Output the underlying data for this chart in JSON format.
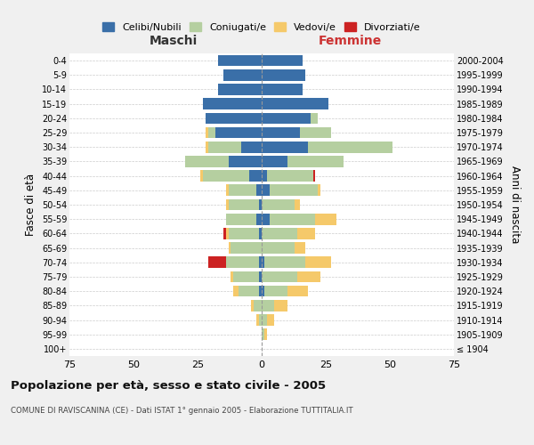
{
  "age_groups": [
    "100+",
    "95-99",
    "90-94",
    "85-89",
    "80-84",
    "75-79",
    "70-74",
    "65-69",
    "60-64",
    "55-59",
    "50-54",
    "45-49",
    "40-44",
    "35-39",
    "30-34",
    "25-29",
    "20-24",
    "15-19",
    "10-14",
    "5-9",
    "0-4"
  ],
  "birth_years": [
    "≤ 1904",
    "1905-1909",
    "1910-1914",
    "1915-1919",
    "1920-1924",
    "1925-1929",
    "1930-1934",
    "1935-1939",
    "1940-1944",
    "1945-1949",
    "1950-1954",
    "1955-1959",
    "1960-1964",
    "1965-1969",
    "1970-1974",
    "1975-1979",
    "1980-1984",
    "1985-1989",
    "1990-1994",
    "1995-1999",
    "2000-2004"
  ],
  "male": {
    "celibi": [
      0,
      0,
      0,
      0,
      1,
      1,
      1,
      0,
      1,
      2,
      1,
      2,
      5,
      13,
      8,
      18,
      22,
      23,
      17,
      15,
      17
    ],
    "coniugati": [
      0,
      0,
      1,
      3,
      8,
      10,
      13,
      12,
      12,
      12,
      12,
      11,
      18,
      17,
      13,
      3,
      0,
      0,
      0,
      0,
      0
    ],
    "vedovi": [
      0,
      0,
      1,
      1,
      2,
      1,
      0,
      1,
      1,
      0,
      1,
      1,
      1,
      0,
      1,
      1,
      0,
      0,
      0,
      0,
      0
    ],
    "divorziati": [
      0,
      0,
      0,
      0,
      0,
      0,
      7,
      0,
      1,
      0,
      0,
      0,
      0,
      0,
      0,
      0,
      0,
      0,
      0,
      0,
      0
    ]
  },
  "female": {
    "nubili": [
      0,
      0,
      0,
      0,
      1,
      0,
      1,
      0,
      0,
      3,
      0,
      3,
      2,
      10,
      18,
      15,
      19,
      26,
      16,
      17,
      16
    ],
    "coniugate": [
      0,
      1,
      2,
      5,
      9,
      14,
      16,
      13,
      14,
      18,
      13,
      19,
      18,
      22,
      33,
      12,
      3,
      0,
      0,
      0,
      0
    ],
    "vedove": [
      0,
      1,
      3,
      5,
      8,
      9,
      10,
      4,
      7,
      8,
      2,
      1,
      0,
      0,
      0,
      0,
      0,
      0,
      0,
      0,
      0
    ],
    "divorziate": [
      0,
      0,
      0,
      0,
      0,
      0,
      0,
      0,
      0,
      0,
      0,
      0,
      1,
      0,
      0,
      0,
      0,
      0,
      0,
      0,
      0
    ]
  },
  "colors": {
    "celibi": "#3a6fa8",
    "coniugati": "#b5cfa0",
    "vedovi": "#f5c96a",
    "divorziati": "#cc2222"
  },
  "title": "Popolazione per età, sesso e stato civile - 2005",
  "subtitle": "COMUNE DI RAVISCANINA (CE) - Dati ISTAT 1° gennaio 2005 - Elaborazione TUTTITALIA.IT",
  "xlabel_left": "Maschi",
  "xlabel_right": "Femmine",
  "ylabel_left": "Fasce di età",
  "ylabel_right": "Anni di nascita",
  "xlim": 75,
  "legend_labels": [
    "Celibi/Nubili",
    "Coniugati/e",
    "Vedovi/e",
    "Divorziati/e"
  ],
  "bg_color": "#f0f0f0",
  "plot_bg": "#ffffff"
}
